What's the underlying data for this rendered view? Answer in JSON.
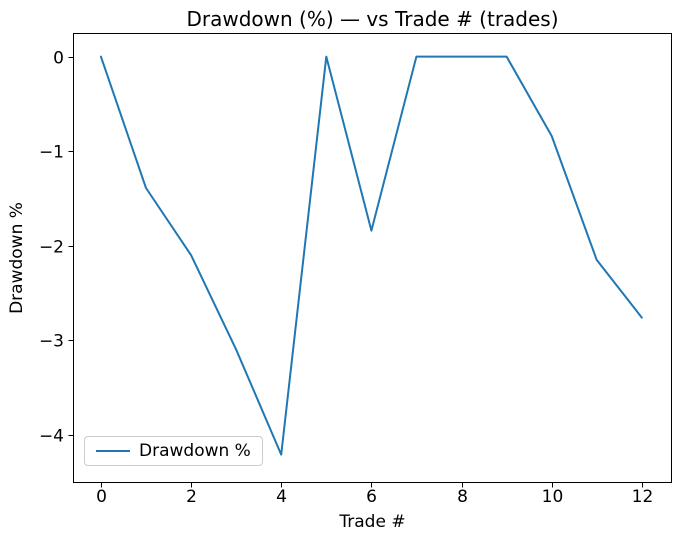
{
  "figure": {
    "background": "#ffffff",
    "text_color": "#000000",
    "spine_color": "#000000"
  },
  "chart_data": {
    "type": "line",
    "title": "Drawdown (%) — vs Trade # (trades)",
    "xlabel": "Trade #",
    "ylabel": "Drawdown %",
    "x": [
      0,
      1,
      2,
      3,
      4,
      5,
      6,
      7,
      8,
      9,
      10,
      11,
      12
    ],
    "series": [
      {
        "name": "Drawdown %",
        "color": "#1f77b4",
        "values": [
          0,
          -1.39,
          -2.1,
          -3.1,
          -4.21,
          0,
          -1.84,
          0,
          0,
          0,
          -0.84,
          -2.15,
          -2.76
        ]
      }
    ],
    "xlim": [
      -0.62,
      12.67
    ],
    "ylim": [
      -4.51,
      0.25
    ],
    "xticks": [
      0,
      2,
      4,
      6,
      8,
      10,
      12
    ],
    "xticklabels": [
      "0",
      "2",
      "4",
      "6",
      "8",
      "10",
      "12"
    ],
    "yticks": [
      0,
      -1,
      -2,
      -3,
      -4
    ],
    "yticklabels": [
      "0",
      "−1",
      "−2",
      "−3",
      "−4"
    ],
    "grid": false,
    "legend": {
      "position": "lower left",
      "entries": [
        "Drawdown %"
      ]
    }
  }
}
